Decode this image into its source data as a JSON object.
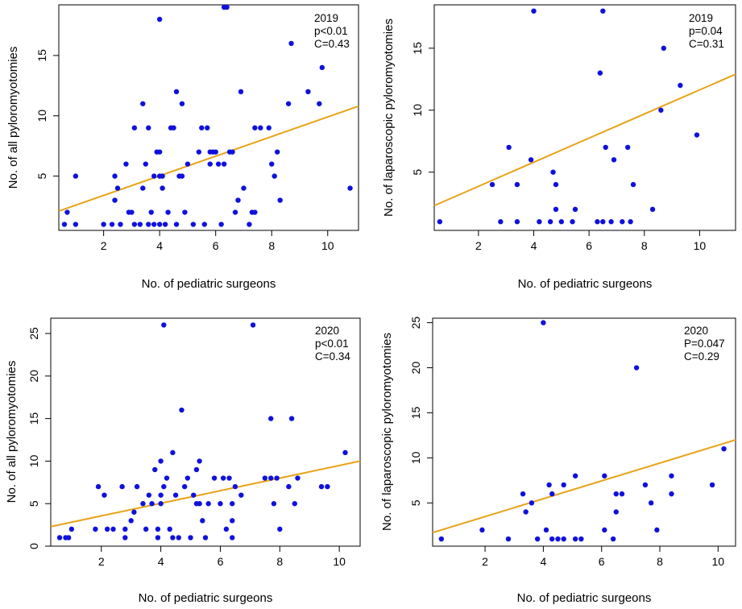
{
  "colors": {
    "points": "#1010dd",
    "fit_line": "#e8a317",
    "axis": "#000000"
  },
  "chart_data": [
    {
      "type": "scatter",
      "title": "",
      "xlabel": "No. of pediatric surgeons",
      "ylabel": "No. of all pyloromyotomies",
      "xlim": [
        0.4,
        11.1
      ],
      "ylim": [
        0.5,
        19.2
      ],
      "xticks": [
        2,
        4,
        6,
        8,
        10
      ],
      "yticks": [
        5,
        10,
        15
      ],
      "annotation": [
        "2019",
        "p<0.01",
        "C=0.43"
      ],
      "fit_line": {
        "x": [
          0.4,
          11.1
        ],
        "y": [
          2.1,
          10.8
        ]
      },
      "points": [
        [
          0.6,
          1
        ],
        [
          0.7,
          2
        ],
        [
          1,
          1
        ],
        [
          1,
          5
        ],
        [
          2,
          1
        ],
        [
          2.3,
          1
        ],
        [
          2.4,
          3
        ],
        [
          2.4,
          5
        ],
        [
          2.5,
          4
        ],
        [
          2.6,
          1
        ],
        [
          2.8,
          6
        ],
        [
          2.9,
          2
        ],
        [
          3,
          2
        ],
        [
          3.1,
          1
        ],
        [
          3.1,
          9
        ],
        [
          3.3,
          1
        ],
        [
          3.4,
          4
        ],
        [
          3.4,
          11
        ],
        [
          3.5,
          6
        ],
        [
          3.6,
          1
        ],
        [
          3.6,
          9
        ],
        [
          3.7,
          2
        ],
        [
          3.8,
          1
        ],
        [
          3.8,
          5
        ],
        [
          3.9,
          7
        ],
        [
          4,
          1
        ],
        [
          4,
          7
        ],
        [
          4,
          18
        ],
        [
          4,
          5
        ],
        [
          4.1,
          4
        ],
        [
          4.1,
          5
        ],
        [
          4.2,
          1
        ],
        [
          4.3,
          2
        ],
        [
          4.4,
          9
        ],
        [
          4.5,
          9
        ],
        [
          4.6,
          12
        ],
        [
          4.6,
          1
        ],
        [
          4.7,
          5
        ],
        [
          4.8,
          5
        ],
        [
          4.8,
          11
        ],
        [
          4.9,
          2
        ],
        [
          5,
          6
        ],
        [
          5.2,
          1
        ],
        [
          5.4,
          7
        ],
        [
          5.5,
          9
        ],
        [
          5.6,
          1
        ],
        [
          5.7,
          9
        ],
        [
          5.8,
          7
        ],
        [
          5.8,
          6
        ],
        [
          5.9,
          7
        ],
        [
          6,
          7
        ],
        [
          6.1,
          6
        ],
        [
          6.2,
          1
        ],
        [
          6.3,
          19
        ],
        [
          6.3,
          6
        ],
        [
          6.4,
          19
        ],
        [
          6.5,
          7
        ],
        [
          6.6,
          7
        ],
        [
          6.7,
          2
        ],
        [
          6.8,
          3
        ],
        [
          6.9,
          12
        ],
        [
          7,
          4
        ],
        [
          7.2,
          1
        ],
        [
          7.3,
          2
        ],
        [
          7.4,
          9
        ],
        [
          7.4,
          2
        ],
        [
          7.6,
          9
        ],
        [
          7.9,
          9
        ],
        [
          8,
          6
        ],
        [
          8.1,
          5
        ],
        [
          8.2,
          7
        ],
        [
          8.3,
          3
        ],
        [
          8.6,
          11
        ],
        [
          8.7,
          16
        ],
        [
          9.3,
          12
        ],
        [
          9.7,
          11
        ],
        [
          9.8,
          14
        ],
        [
          10.8,
          4
        ]
      ]
    },
    {
      "type": "scatter",
      "title": "",
      "xlabel": "No. of pediatric surgeons",
      "ylabel": "No. of laparoscopic pyloromyotomies",
      "xlim": [
        0.4,
        11.3
      ],
      "ylim": [
        0.3,
        18.5
      ],
      "xticks": [
        2,
        4,
        6,
        8,
        10
      ],
      "yticks": [
        5,
        10,
        15
      ],
      "annotation": [
        "2019",
        "p=0.04",
        "C=0.31"
      ],
      "fit_line": {
        "x": [
          0.4,
          11.3
        ],
        "y": [
          2.3,
          12.9
        ]
      },
      "points": [
        [
          0.6,
          1
        ],
        [
          2.5,
          4
        ],
        [
          2.8,
          1
        ],
        [
          3.1,
          7
        ],
        [
          3.4,
          1
        ],
        [
          3.4,
          4
        ],
        [
          3.9,
          6
        ],
        [
          4,
          18
        ],
        [
          4.2,
          1
        ],
        [
          4.6,
          1
        ],
        [
          4.7,
          5
        ],
        [
          4.8,
          2
        ],
        [
          4.8,
          4
        ],
        [
          5,
          1
        ],
        [
          5.4,
          1
        ],
        [
          5.5,
          2
        ],
        [
          6.3,
          1
        ],
        [
          6.4,
          13
        ],
        [
          6.5,
          1
        ],
        [
          6.5,
          18
        ],
        [
          6.6,
          7
        ],
        [
          6.8,
          1
        ],
        [
          6.9,
          6
        ],
        [
          7.2,
          1
        ],
        [
          7.4,
          7
        ],
        [
          7.5,
          1
        ],
        [
          7.6,
          4
        ],
        [
          8.3,
          2
        ],
        [
          8.6,
          10
        ],
        [
          8.7,
          15
        ],
        [
          9.3,
          12
        ],
        [
          9.9,
          8
        ]
      ]
    },
    {
      "type": "scatter",
      "title": "",
      "xlabel": "No. of pediatric surgeons",
      "ylabel": "No. of all pyloromyotomies",
      "xlim": [
        0.3,
        10.7
      ],
      "ylim": [
        0,
        26.8
      ],
      "xticks": [
        2,
        4,
        6,
        8,
        10
      ],
      "yticks": [
        0,
        5,
        10,
        15,
        20,
        25
      ],
      "annotation": [
        "2020",
        "p<0.01",
        "C=0.34"
      ],
      "fit_line": {
        "x": [
          0.3,
          10.7
        ],
        "y": [
          2.3,
          10.0
        ]
      },
      "points": [
        [
          0.6,
          1
        ],
        [
          0.8,
          1
        ],
        [
          0.9,
          1
        ],
        [
          1,
          2
        ],
        [
          1.8,
          2
        ],
        [
          1.9,
          7
        ],
        [
          2.1,
          6
        ],
        [
          2.2,
          2
        ],
        [
          2.4,
          2
        ],
        [
          2.7,
          7
        ],
        [
          2.8,
          1
        ],
        [
          2.8,
          2
        ],
        [
          3,
          3
        ],
        [
          3.1,
          4
        ],
        [
          3.2,
          7
        ],
        [
          3.4,
          5
        ],
        [
          3.5,
          2
        ],
        [
          3.6,
          6
        ],
        [
          3.7,
          5
        ],
        [
          3.8,
          9
        ],
        [
          3.9,
          1
        ],
        [
          3.9,
          2
        ],
        [
          4,
          6
        ],
        [
          4,
          5
        ],
        [
          4,
          10
        ],
        [
          4.1,
          26
        ],
        [
          4.1,
          7
        ],
        [
          4.2,
          8
        ],
        [
          4.3,
          2
        ],
        [
          4.4,
          11
        ],
        [
          4.4,
          1
        ],
        [
          4.5,
          6
        ],
        [
          4.6,
          1
        ],
        [
          4.7,
          16
        ],
        [
          4.8,
          7
        ],
        [
          4.9,
          8
        ],
        [
          5,
          1
        ],
        [
          5.1,
          6
        ],
        [
          5.2,
          5
        ],
        [
          5.2,
          9
        ],
        [
          5.3,
          10
        ],
        [
          5.3,
          5
        ],
        [
          5.4,
          3
        ],
        [
          5.5,
          1
        ],
        [
          5.6,
          5
        ],
        [
          5.8,
          8
        ],
        [
          6,
          5
        ],
        [
          6.1,
          8
        ],
        [
          6.2,
          2
        ],
        [
          6.3,
          8
        ],
        [
          6.4,
          1
        ],
        [
          6.4,
          3
        ],
        [
          6.4,
          5
        ],
        [
          6.5,
          7
        ],
        [
          6.7,
          6
        ],
        [
          7.1,
          26
        ],
        [
          7.5,
          8
        ],
        [
          7.7,
          8
        ],
        [
          7.7,
          15
        ],
        [
          7.8,
          5
        ],
        [
          7.9,
          8
        ],
        [
          8,
          2
        ],
        [
          8.3,
          7
        ],
        [
          8.4,
          15
        ],
        [
          8.5,
          5
        ],
        [
          8.6,
          8
        ],
        [
          9.4,
          7
        ],
        [
          9.6,
          7
        ],
        [
          10.2,
          11
        ]
      ]
    },
    {
      "type": "scatter",
      "title": "",
      "xlabel": "No. of pediatric surgeons",
      "ylabel": "No. of laparoscopic pyloromyotomies",
      "xlim": [
        0.2,
        10.6
      ],
      "ylim": [
        0.2,
        25.5
      ],
      "xticks": [
        2,
        4,
        6,
        8,
        10
      ],
      "yticks": [
        5,
        10,
        15,
        20,
        25
      ],
      "annotation": [
        "2020",
        "P=0.047",
        "C=0.29"
      ],
      "fit_line": {
        "x": [
          0.2,
          10.6
        ],
        "y": [
          1.7,
          12.0
        ]
      },
      "points": [
        [
          0.5,
          1
        ],
        [
          1.9,
          2
        ],
        [
          2.8,
          1
        ],
        [
          3.3,
          6
        ],
        [
          3.4,
          4
        ],
        [
          3.6,
          5
        ],
        [
          3.8,
          1
        ],
        [
          4,
          25
        ],
        [
          4.1,
          2
        ],
        [
          4.2,
          7
        ],
        [
          4.3,
          1
        ],
        [
          4.3,
          6
        ],
        [
          4.5,
          1
        ],
        [
          4.7,
          7
        ],
        [
          4.7,
          1
        ],
        [
          5.1,
          8
        ],
        [
          5.1,
          1
        ],
        [
          5.3,
          1
        ],
        [
          6.1,
          8
        ],
        [
          6.1,
          2
        ],
        [
          6.4,
          1
        ],
        [
          6.5,
          4
        ],
        [
          6.5,
          6
        ],
        [
          6.7,
          6
        ],
        [
          7.2,
          20
        ],
        [
          7.5,
          7
        ],
        [
          7.7,
          5
        ],
        [
          7.9,
          2
        ],
        [
          8.4,
          8
        ],
        [
          8.4,
          6
        ],
        [
          9.8,
          7
        ],
        [
          10.2,
          11
        ]
      ]
    }
  ]
}
